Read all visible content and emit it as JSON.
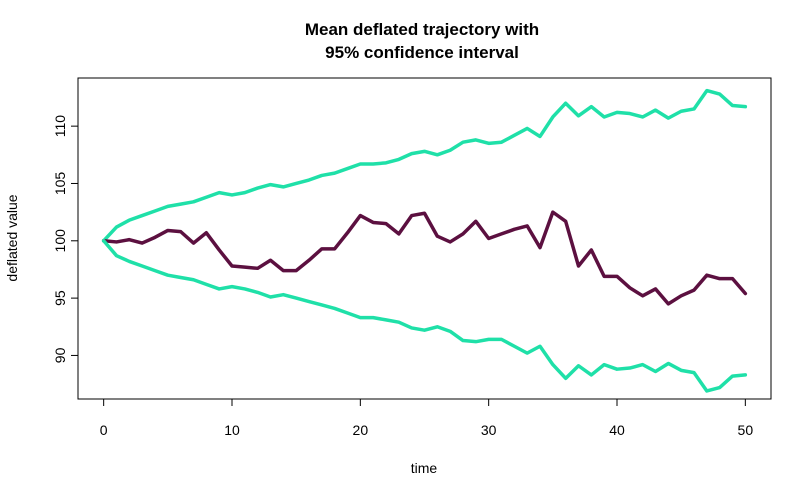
{
  "chart_data": {
    "type": "line",
    "title_lines": [
      "Mean deflated trajectory with",
      "95% confidence interval"
    ],
    "xlabel": "time",
    "ylabel": "deflated value",
    "xlim": [
      -2,
      52
    ],
    "ylim": [
      86.2,
      114.2
    ],
    "xticks": [
      0,
      10,
      20,
      30,
      40,
      50
    ],
    "yticks": [
      90,
      95,
      100,
      105,
      110
    ],
    "grid": false,
    "x": [
      0,
      1,
      2,
      3,
      4,
      5,
      6,
      7,
      8,
      9,
      10,
      11,
      12,
      13,
      14,
      15,
      16,
      17,
      18,
      19,
      20,
      21,
      22,
      23,
      24,
      25,
      26,
      27,
      28,
      29,
      30,
      31,
      32,
      33,
      34,
      35,
      36,
      37,
      38,
      39,
      40,
      41,
      42,
      43,
      44,
      45,
      46,
      47,
      48,
      49,
      50
    ],
    "series": [
      {
        "role": "upper-bound",
        "color": "#1fe0a8",
        "values": [
          100.0,
          101.2,
          101.8,
          102.2,
          102.6,
          103.0,
          103.2,
          103.4,
          103.8,
          104.2,
          104.0,
          104.2,
          104.6,
          104.9,
          104.7,
          105.0,
          105.3,
          105.7,
          105.9,
          106.3,
          106.7,
          106.7,
          106.8,
          107.1,
          107.6,
          107.8,
          107.5,
          107.9,
          108.6,
          108.8,
          108.5,
          108.6,
          109.2,
          109.8,
          109.1,
          110.8,
          112.0,
          110.9,
          111.7,
          110.8,
          111.2,
          111.1,
          110.8,
          111.4,
          110.7,
          111.3,
          111.5,
          113.1,
          112.8,
          111.8,
          111.7
        ]
      },
      {
        "role": "mean",
        "color": "#5c1040",
        "values": [
          100.0,
          99.9,
          100.1,
          99.8,
          100.3,
          100.9,
          100.8,
          99.8,
          100.7,
          99.2,
          97.8,
          97.7,
          97.6,
          98.3,
          97.4,
          97.4,
          98.3,
          99.3,
          99.3,
          100.7,
          102.2,
          101.6,
          101.5,
          100.6,
          102.2,
          102.4,
          100.4,
          99.9,
          100.6,
          101.7,
          100.2,
          100.6,
          101.0,
          101.3,
          99.4,
          102.5,
          101.7,
          97.8,
          99.2,
          96.9,
          96.9,
          95.9,
          95.2,
          95.8,
          94.5,
          95.2,
          95.7,
          97.0,
          96.7,
          96.7,
          95.4
        ]
      },
      {
        "role": "lower-bound",
        "color": "#1fe0a8",
        "values": [
          100.0,
          98.7,
          98.2,
          97.8,
          97.4,
          97.0,
          96.8,
          96.6,
          96.2,
          95.8,
          96.0,
          95.8,
          95.5,
          95.1,
          95.3,
          95.0,
          94.7,
          94.4,
          94.1,
          93.7,
          93.3,
          93.3,
          93.1,
          92.9,
          92.4,
          92.2,
          92.5,
          92.1,
          91.3,
          91.2,
          91.4,
          91.4,
          90.8,
          90.2,
          90.8,
          89.2,
          88.0,
          89.1,
          88.3,
          89.2,
          88.8,
          88.9,
          89.2,
          88.6,
          89.3,
          88.7,
          88.5,
          86.9,
          87.2,
          88.2,
          88.3
        ]
      }
    ]
  }
}
